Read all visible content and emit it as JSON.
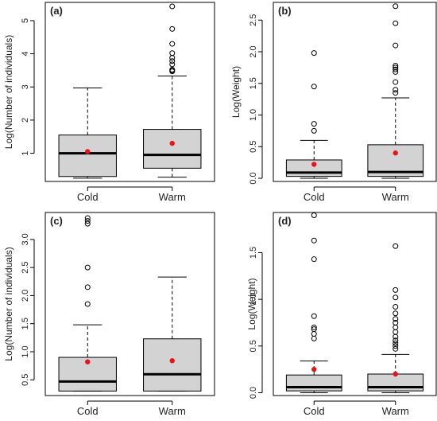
{
  "chart_data": [
    {
      "type": "box",
      "panel_label": "(a)",
      "ylabel": "Log(Number of individuals)",
      "categories": [
        "Cold",
        "Warm"
      ],
      "yticks": [
        1,
        2,
        3,
        4,
        5
      ],
      "ylim": [
        0.15,
        5.55
      ],
      "boxes": [
        {
          "category": "Cold",
          "whisker_low": 0.25,
          "q1": 0.3,
          "median": 1.0,
          "q3": 1.55,
          "whisker_high": 2.97,
          "mean": 1.05,
          "outliers": []
        },
        {
          "category": "Warm",
          "whisker_low": 0.28,
          "q1": 0.55,
          "median": 0.95,
          "q3": 1.72,
          "whisker_high": 3.33,
          "mean": 1.3,
          "outliers": [
            3.47,
            3.5,
            3.52,
            3.68,
            3.78,
            3.88,
            4.02,
            4.3,
            4.75,
            5.43
          ]
        }
      ]
    },
    {
      "type": "box",
      "panel_label": "(b)",
      "ylabel": "Log(Weight)",
      "categories": [
        "Cold",
        "Warm"
      ],
      "yticks": [
        0.0,
        0.5,
        1.0,
        1.5,
        2.0,
        2.5
      ],
      "ytick_labels": [
        "0.0",
        "0.5",
        "1.0",
        "1.5",
        "2.0",
        "2.5"
      ],
      "ylim": [
        -0.05,
        2.78
      ],
      "boxes": [
        {
          "category": "Cold",
          "whisker_low": 0.0,
          "q1": 0.03,
          "median": 0.09,
          "q3": 0.29,
          "whisker_high": 0.6,
          "mean": 0.22,
          "outliers": [
            0.75,
            0.86,
            1.45,
            1.98
          ]
        },
        {
          "category": "Warm",
          "whisker_low": 0.0,
          "q1": 0.03,
          "median": 0.1,
          "q3": 0.53,
          "whisker_high": 1.27,
          "mean": 0.4,
          "outliers": [
            1.35,
            1.4,
            1.52,
            1.68,
            1.72,
            1.75,
            1.78,
            2.1,
            2.45,
            2.72
          ]
        }
      ]
    },
    {
      "type": "box",
      "panel_label": "(c)",
      "ylabel": "Log(Number of individuals)",
      "categories": [
        "Cold",
        "Warm"
      ],
      "yticks": [
        0.5,
        1.0,
        1.5,
        2.0,
        2.5,
        3.0
      ],
      "ytick_labels": [
        "0.5",
        "1.0",
        "1.5",
        "2.0",
        "2.5",
        "3.0"
      ],
      "ylim": [
        0.22,
        3.48
      ],
      "boxes": [
        {
          "category": "Cold",
          "whisker_low": 0.3,
          "q1": 0.3,
          "median": 0.47,
          "q3": 0.9,
          "whisker_high": 1.48,
          "mean": 0.82,
          "outliers": [
            1.85,
            2.15,
            2.5,
            3.28,
            3.33,
            3.38
          ]
        },
        {
          "category": "Warm",
          "whisker_low": 0.3,
          "q1": 0.3,
          "median": 0.6,
          "q3": 1.23,
          "whisker_high": 2.33,
          "mean": 0.84,
          "outliers": []
        }
      ]
    },
    {
      "type": "box",
      "panel_label": "(d)",
      "ylabel": "Log(Weight)",
      "categories": [
        "Cold",
        "Warm"
      ],
      "yticks": [
        0.0,
        0.5,
        1.0,
        1.5
      ],
      "ytick_labels": [
        "0.0",
        "0.5",
        "1.0",
        "1.5"
      ],
      "ylim": [
        -0.03,
        1.93
      ],
      "boxes": [
        {
          "category": "Cold",
          "whisker_low": 0.0,
          "q1": 0.02,
          "median": 0.06,
          "q3": 0.19,
          "whisker_high": 0.34,
          "mean": 0.25,
          "outliers": [
            0.58,
            0.63,
            0.68,
            0.7,
            0.82,
            1.43,
            1.63,
            1.9
          ]
        },
        {
          "category": "Warm",
          "whisker_low": 0.0,
          "q1": 0.02,
          "median": 0.06,
          "q3": 0.2,
          "whisker_high": 0.41,
          "mean": 0.2,
          "outliers": [
            0.47,
            0.5,
            0.53,
            0.56,
            0.6,
            0.65,
            0.7,
            0.75,
            0.79,
            0.85,
            0.92,
            1.02,
            1.1,
            1.57
          ]
        }
      ]
    }
  ],
  "style": {
    "box_fill": "#d3d3d3",
    "line_color": "#000000",
    "mean_color": "#e8141c",
    "background": "#ffffff"
  }
}
